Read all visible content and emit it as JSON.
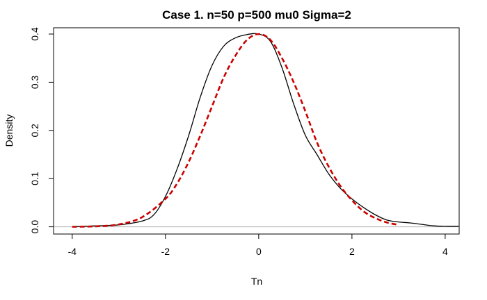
{
  "chart_data": {
    "type": "line",
    "title": "Case 1. n=50 p=500 mu0 Sigma=2",
    "xlabel": "Tn",
    "ylabel": "Density",
    "xlim": [
      -4.4,
      4.3
    ],
    "ylim": [
      -0.015,
      0.413
    ],
    "x_ticks": [
      "-4",
      "-2",
      "0",
      "2",
      "4"
    ],
    "y_ticks": [
      "0.0",
      "0.1",
      "0.2",
      "0.3",
      "0.4"
    ],
    "x_tick_values": [
      -4,
      -2,
      0,
      2,
      4
    ],
    "y_tick_values": [
      0,
      0.1,
      0.2,
      0.3,
      0.4
    ],
    "reference_line_y": 0,
    "grid": false,
    "series": [
      {
        "color": "#000000",
        "dash": "solid",
        "x": [
          -4.0,
          -3.5,
          -3.0,
          -2.5,
          -2.25,
          -2.0,
          -1.75,
          -1.5,
          -1.25,
          -1.0,
          -0.75,
          -0.5,
          -0.25,
          0.0,
          0.25,
          0.5,
          0.75,
          1.0,
          1.25,
          1.5,
          1.75,
          2.0,
          2.25,
          2.5,
          2.75,
          3.0,
          3.25,
          3.5,
          3.75,
          4.0,
          4.3
        ],
        "y": [
          0.0,
          0.002,
          0.004,
          0.012,
          0.025,
          0.063,
          0.12,
          0.19,
          0.27,
          0.335,
          0.375,
          0.392,
          0.399,
          0.4,
          0.385,
          0.33,
          0.255,
          0.19,
          0.15,
          0.11,
          0.08,
          0.058,
          0.04,
          0.025,
          0.014,
          0.01,
          0.008,
          0.005,
          0.002,
          0.001,
          0.001
        ]
      },
      {
        "color": "#cc0000",
        "dash": "dashed",
        "x": [
          -4.0,
          -3.5,
          -3.0,
          -2.5,
          -2.0,
          -1.75,
          -1.5,
          -1.25,
          -1.0,
          -0.75,
          -0.5,
          -0.25,
          0.0,
          0.25,
          0.5,
          0.75,
          1.0,
          1.25,
          1.5,
          1.75,
          2.0,
          2.25,
          2.5,
          2.75,
          3.0
        ],
        "y": [
          0.0,
          0.001,
          0.005,
          0.02,
          0.058,
          0.09,
          0.135,
          0.19,
          0.25,
          0.31,
          0.355,
          0.388,
          0.4,
          0.388,
          0.35,
          0.3,
          0.24,
          0.175,
          0.125,
          0.085,
          0.055,
          0.032,
          0.018,
          0.009,
          0.004
        ]
      }
    ]
  }
}
